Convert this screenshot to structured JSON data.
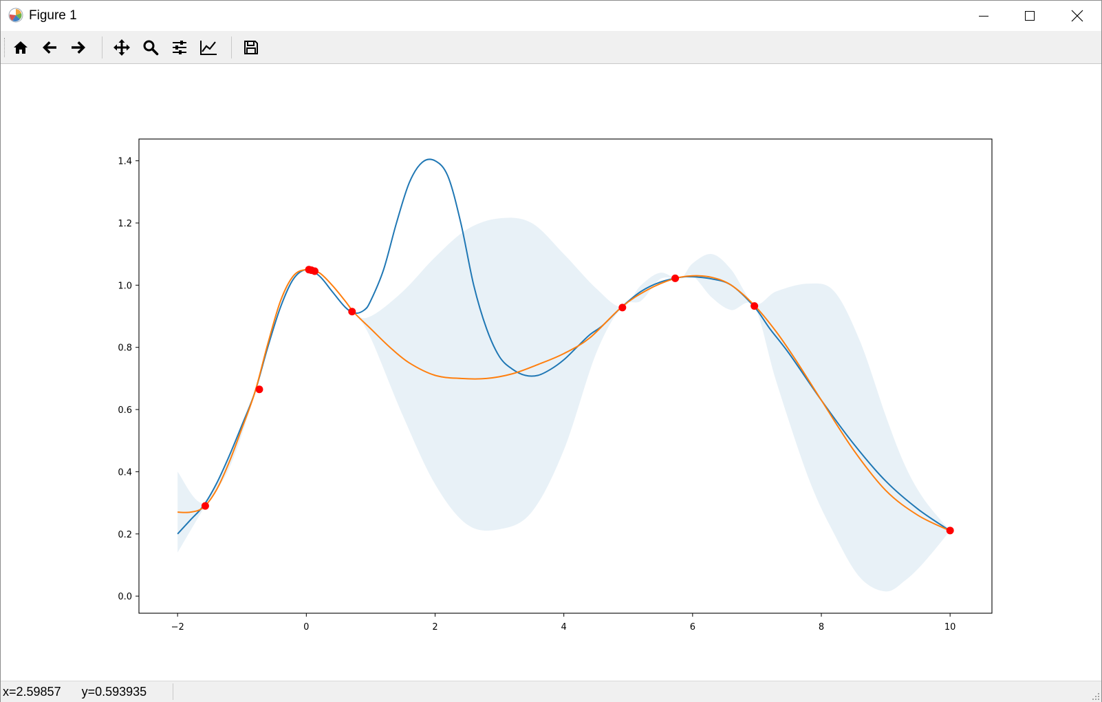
{
  "window": {
    "title": "Figure 1",
    "icons": {
      "app": "matplotlib-icon",
      "minimize": "minimize-icon",
      "maximize": "maximize-icon",
      "close": "close-icon"
    }
  },
  "toolbar": {
    "items": [
      {
        "name": "home",
        "icon": "home-icon"
      },
      {
        "name": "back",
        "icon": "arrow-left-icon"
      },
      {
        "name": "forward",
        "icon": "arrow-right-icon"
      },
      {
        "name": "pan",
        "icon": "move-icon"
      },
      {
        "name": "zoom",
        "icon": "zoom-icon"
      },
      {
        "name": "subplots",
        "icon": "sliders-icon"
      },
      {
        "name": "axes",
        "icon": "line-chart-icon"
      },
      {
        "name": "save",
        "icon": "save-icon"
      }
    ]
  },
  "status": {
    "coordinates": "x=2.59857      y=0.593935"
  },
  "chart_data": {
    "type": "line",
    "title": "",
    "xlabel": "",
    "ylabel": "",
    "xlim": [
      -2.6,
      10.65
    ],
    "ylim": [
      -0.055,
      1.47
    ],
    "xticks": [
      -2,
      0,
      2,
      4,
      6,
      8,
      10
    ],
    "yticks": [
      0.0,
      0.2,
      0.4,
      0.6,
      0.8,
      1.0,
      1.2,
      1.4
    ],
    "xtick_labels": [
      "−2",
      "0",
      "2",
      "4",
      "6",
      "8",
      "10"
    ],
    "ytick_labels": [
      "0.0",
      "0.2",
      "0.4",
      "0.6",
      "0.8",
      "1.0",
      "1.2",
      "1.4"
    ],
    "grid": false,
    "series": [
      {
        "kind": "line",
        "color": "#1f77b4",
        "x": [
          -2,
          -1.8,
          -1.6,
          -1.4,
          -1.2,
          -1.0,
          -0.8,
          -0.6,
          -0.4,
          -0.2,
          0.0,
          0.2,
          0.4,
          0.6,
          0.75,
          0.9,
          1.0,
          1.2,
          1.4,
          1.6,
          1.8,
          2.0,
          2.2,
          2.4,
          2.6,
          2.8,
          3.0,
          3.2,
          3.4,
          3.6,
          3.8,
          4.0,
          4.2,
          4.4,
          4.6,
          4.9,
          5.2,
          5.5,
          5.8,
          6.0,
          6.3,
          6.6,
          6.96,
          7.2,
          7.5,
          8.0,
          8.5,
          9.0,
          9.5,
          10.0
        ],
        "y": [
          0.2,
          0.245,
          0.29,
          0.36,
          0.45,
          0.55,
          0.655,
          0.8,
          0.93,
          1.02,
          1.05,
          1.03,
          0.98,
          0.93,
          0.91,
          0.92,
          0.95,
          1.05,
          1.2,
          1.33,
          1.395,
          1.4,
          1.35,
          1.2,
          1.0,
          0.86,
          0.77,
          0.73,
          0.71,
          0.71,
          0.73,
          0.76,
          0.8,
          0.84,
          0.87,
          0.93,
          0.98,
          1.01,
          1.025,
          1.027,
          1.02,
          1.0,
          0.93,
          0.86,
          0.78,
          0.63,
          0.49,
          0.37,
          0.28,
          0.21
        ]
      },
      {
        "kind": "line",
        "color": "#ff7f0e",
        "x": [
          -2,
          -1.8,
          -1.6,
          -1.4,
          -1.2,
          -1.0,
          -0.8,
          -0.6,
          -0.4,
          -0.2,
          0.0,
          0.2,
          0.4,
          0.6,
          0.75,
          1.0,
          1.3,
          1.6,
          2.0,
          2.4,
          2.8,
          3.2,
          3.6,
          4.0,
          4.4,
          4.9,
          5.3,
          5.7,
          6.0,
          6.3,
          6.6,
          6.96,
          7.3,
          7.6,
          8.0,
          8.5,
          9.0,
          9.5,
          10.0
        ],
        "y": [
          0.27,
          0.27,
          0.285,
          0.34,
          0.43,
          0.54,
          0.655,
          0.81,
          0.95,
          1.03,
          1.05,
          1.04,
          1.0,
          0.95,
          0.91,
          0.86,
          0.8,
          0.75,
          0.71,
          0.7,
          0.7,
          0.715,
          0.745,
          0.78,
          0.83,
          0.93,
          0.985,
          1.02,
          1.03,
          1.025,
          1.0,
          0.935,
          0.85,
          0.76,
          0.63,
          0.47,
          0.34,
          0.26,
          0.21
        ]
      },
      {
        "kind": "band",
        "color": "#1f77b4",
        "opacity": 0.1,
        "x": [
          -2,
          -1.6,
          -1.2,
          -0.8,
          -0.4,
          0.0,
          0.4,
          0.75,
          1.0,
          1.5,
          2.0,
          2.5,
          3.0,
          3.5,
          4.0,
          4.5,
          4.9,
          5.2,
          5.5,
          5.8,
          6.0,
          6.3,
          6.6,
          6.96,
          7.3,
          7.8,
          8.2,
          8.6,
          9.0,
          9.3,
          9.6,
          10.0
        ],
        "upper": [
          0.4,
          0.3,
          0.45,
          0.66,
          0.95,
          1.05,
          1.0,
          0.91,
          0.9,
          0.98,
          1.09,
          1.18,
          1.215,
          1.2,
          1.1,
          0.99,
          0.93,
          1.0,
          1.04,
          1.02,
          1.07,
          1.1,
          1.05,
          0.94,
          0.98,
          1.005,
          0.98,
          0.82,
          0.58,
          0.42,
          0.31,
          0.21
        ],
        "lower": [
          0.14,
          0.28,
          0.41,
          0.65,
          0.94,
          1.05,
          1.0,
          0.91,
          0.83,
          0.58,
          0.36,
          0.23,
          0.215,
          0.27,
          0.47,
          0.78,
          0.93,
          0.95,
          1.02,
          1.02,
          1.03,
          0.96,
          0.92,
          0.93,
          0.69,
          0.38,
          0.2,
          0.06,
          0.015,
          0.05,
          0.11,
          0.21
        ]
      },
      {
        "kind": "scatter",
        "color": "#ff0000",
        "x": [
          -1.57,
          -0.73,
          0.04,
          0.08,
          0.13,
          0.71,
          4.91,
          5.73,
          6.96,
          10.0
        ],
        "y": [
          0.29,
          0.665,
          1.05,
          1.048,
          1.045,
          0.915,
          0.928,
          1.022,
          0.933,
          0.211
        ]
      }
    ]
  }
}
